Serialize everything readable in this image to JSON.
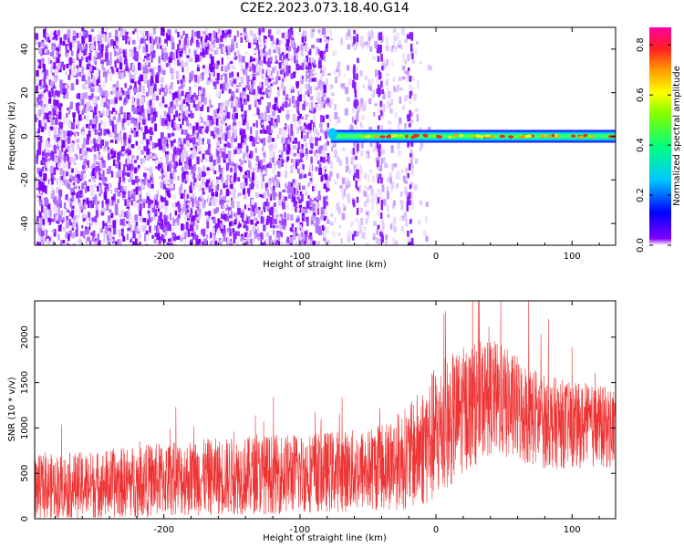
{
  "title": "C2E2.2023.073.18.40.G14",
  "chart_data": [
    {
      "type": "heatmap",
      "xlabel": "Height of straight line (km)",
      "ylabel": "Frequency (Hz)",
      "xlim": [
        -295,
        132
      ],
      "ylim": [
        -50,
        50
      ],
      "xticks": [
        -200,
        -100,
        0,
        100
      ],
      "yticks": [
        -40,
        -20,
        0,
        20,
        40
      ],
      "colorbar": {
        "label": "Normalized spectral amplitude",
        "range": [
          0,
          0.87
        ],
        "ticks": [
          0.0,
          0.2,
          0.4,
          0.6,
          0.8
        ],
        "colormap": [
          "#ffffff",
          "#7f00ff",
          "#0000ff",
          "#00c8ff",
          "#00ff80",
          "#80ff00",
          "#ffff00",
          "#ffa000",
          "#ff2020",
          "#ff00a0"
        ]
      },
      "features": {
        "noise_region_x": [
          -295,
          -18
        ],
        "noise_sparse_x": [
          -80,
          -18
        ],
        "signal_start_x": -80,
        "signal_end_x": 132,
        "signal_frequency": 0
      }
    },
    {
      "type": "line",
      "xlabel": "Height of straight line (km)",
      "ylabel": "SNR (10 * v/v)",
      "xlim": [
        -295,
        132
      ],
      "ylim": [
        0,
        2400
      ],
      "xticks": [
        -200,
        -100,
        0,
        100
      ],
      "yticks": [
        0,
        500,
        1000,
        1500,
        2000
      ],
      "color": "#ee3333",
      "series": [
        {
          "x": [
            -295,
            -250,
            -200,
            -150,
            -100,
            -50,
            -20,
            0,
            20,
            40,
            60,
            80,
            100,
            132
          ],
          "low": [
            0,
            0,
            20,
            40,
            60,
            80,
            100,
            150,
            500,
            700,
            600,
            550,
            550,
            550
          ],
          "high": [
            700,
            750,
            850,
            900,
            950,
            1000,
            1250,
            1700,
            1900,
            2000,
            1800,
            1600,
            1500,
            1450
          ]
        }
      ]
    }
  ]
}
